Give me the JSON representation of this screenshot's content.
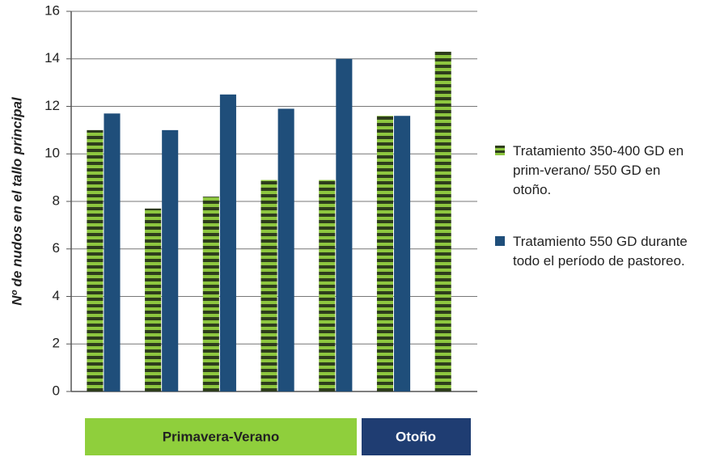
{
  "chart_data": {
    "type": "bar",
    "y_label": "Nº de nudos en el tallo principal",
    "categories": [
      null,
      null,
      null,
      null,
      null,
      null,
      null
    ],
    "series": [
      {
        "name": "Tratamiento 350-400 GD en prim-verano/ 550 GD en otoño.",
        "color": "#8dc63f",
        "values": [
          11.0,
          7.7,
          8.2,
          8.9,
          8.9,
          11.6,
          14.3
        ]
      },
      {
        "name": "Tratamiento 550 GD durante todo el período de pastoreo.",
        "color": "#1f4e7a",
        "values": [
          11.7,
          11.0,
          12.5,
          11.9,
          14.0,
          11.6,
          null
        ]
      }
    ],
    "ylim": [
      0,
      16
    ],
    "yticks": [
      0,
      2,
      4,
      6,
      8,
      10,
      12,
      14,
      16
    ],
    "grid": true,
    "annotations": [
      "Primavera-Verano",
      "Otoño"
    ]
  }
}
